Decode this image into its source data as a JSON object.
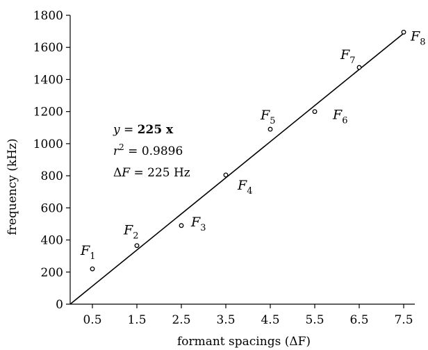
{
  "chart_data": {
    "type": "scatter",
    "title": "",
    "xlabel": "formant spacings (ΔF)",
    "ylabel": "frequency (kHz)",
    "xlim": [
      0,
      7.75
    ],
    "ylim": [
      0,
      1800
    ],
    "x_ticks": [
      "0.5",
      "1.5",
      "2.5",
      "3.5",
      "4.5",
      "5.5",
      "6.5",
      "7.5"
    ],
    "y_ticks": [
      "0",
      "200",
      "400",
      "600",
      "800",
      "1000",
      "1200",
      "1400",
      "1600",
      "1800"
    ],
    "grid": false,
    "points": [
      {
        "label": "F",
        "sub": "1",
        "x": 0.5,
        "y": 220
      },
      {
        "label": "F",
        "sub": "2",
        "x": 1.5,
        "y": 365
      },
      {
        "label": "F",
        "sub": "3",
        "x": 2.5,
        "y": 490
      },
      {
        "label": "F",
        "sub": "4",
        "x": 3.5,
        "y": 805
      },
      {
        "label": "F",
        "sub": "5",
        "x": 4.5,
        "y": 1090
      },
      {
        "label": "F",
        "sub": "6",
        "x": 5.5,
        "y": 1200
      },
      {
        "label": "F",
        "sub": "7",
        "x": 6.5,
        "y": 1475
      },
      {
        "label": "F",
        "sub": "8",
        "x": 7.5,
        "y": 1695
      }
    ],
    "fit_line": {
      "slope": 225,
      "intercept": 0
    },
    "annotation": {
      "eq_lhs": "y = ",
      "eq_rhs": "225 x",
      "r2_lhs": "r",
      "r2_exp": "2",
      "r2_rhs": " = 0.9896",
      "df_sym": "Δ",
      "df_var": "F",
      "df_rhs": " = 225 Hz"
    }
  }
}
